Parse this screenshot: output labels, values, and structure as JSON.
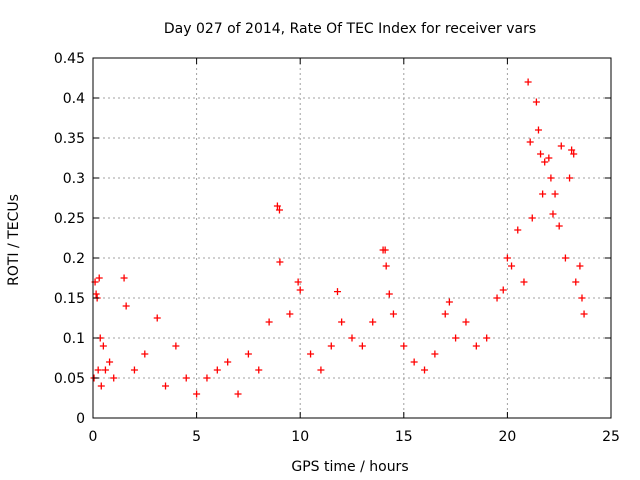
{
  "chart_data": {
    "type": "scatter",
    "title": "Day 027 of 2014, Rate Of TEC Index for receiver vars",
    "xlabel": "GPS time / hours",
    "ylabel": "ROTI / TECUs",
    "xlim": [
      0,
      25
    ],
    "ylim": [
      0,
      0.45
    ],
    "xticks": [
      0,
      5,
      10,
      15,
      20,
      25
    ],
    "yticks": [
      0,
      0.05,
      0.1,
      0.15,
      0.2,
      0.25,
      0.3,
      0.35,
      0.4,
      0.45
    ],
    "grid": true,
    "marker": "+",
    "color": "#ff0000",
    "series": [
      {
        "name": "ROTI",
        "x": [
          0.05,
          0.1,
          0.15,
          0.2,
          0.25,
          0.3,
          0.35,
          0.4,
          0.5,
          0.6,
          0.8,
          1.0,
          1.5,
          1.6,
          2.0,
          2.5,
          3.1,
          3.5,
          4.0,
          4.5,
          5.0,
          5.5,
          6.0,
          6.5,
          7.0,
          7.5,
          8.0,
          8.5,
          8.9,
          9.0,
          9.02,
          9.5,
          9.9,
          10.0,
          10.5,
          11.0,
          11.5,
          11.8,
          12.0,
          12.5,
          13.0,
          13.5,
          14.0,
          14.1,
          14.15,
          14.3,
          14.5,
          15.0,
          15.5,
          16.0,
          16.5,
          17.0,
          17.2,
          17.5,
          18.0,
          18.5,
          19.0,
          19.5,
          19.8,
          20.0,
          20.2,
          20.5,
          20.8,
          21.0,
          21.1,
          21.2,
          21.4,
          21.5,
          21.6,
          21.7,
          21.8,
          22.0,
          22.1,
          22.2,
          22.3,
          22.5,
          22.6,
          22.8,
          23.0,
          23.1,
          23.2,
          23.3,
          23.5,
          23.6,
          23.7
        ],
        "y": [
          0.05,
          0.17,
          0.155,
          0.15,
          0.06,
          0.175,
          0.1,
          0.04,
          0.09,
          0.06,
          0.07,
          0.05,
          0.175,
          0.14,
          0.06,
          0.08,
          0.125,
          0.04,
          0.09,
          0.05,
          0.03,
          0.05,
          0.06,
          0.07,
          0.03,
          0.08,
          0.06,
          0.12,
          0.265,
          0.26,
          0.195,
          0.13,
          0.17,
          0.16,
          0.08,
          0.06,
          0.09,
          0.158,
          0.12,
          0.1,
          0.09,
          0.12,
          0.21,
          0.21,
          0.19,
          0.155,
          0.13,
          0.09,
          0.07,
          0.06,
          0.08,
          0.13,
          0.145,
          0.1,
          0.12,
          0.09,
          0.1,
          0.15,
          0.16,
          0.2,
          0.19,
          0.235,
          0.17,
          0.42,
          0.345,
          0.25,
          0.395,
          0.36,
          0.33,
          0.28,
          0.32,
          0.325,
          0.3,
          0.255,
          0.28,
          0.24,
          0.34,
          0.2,
          0.3,
          0.335,
          0.33,
          0.17,
          0.19,
          0.15,
          0.13
        ]
      }
    ]
  }
}
